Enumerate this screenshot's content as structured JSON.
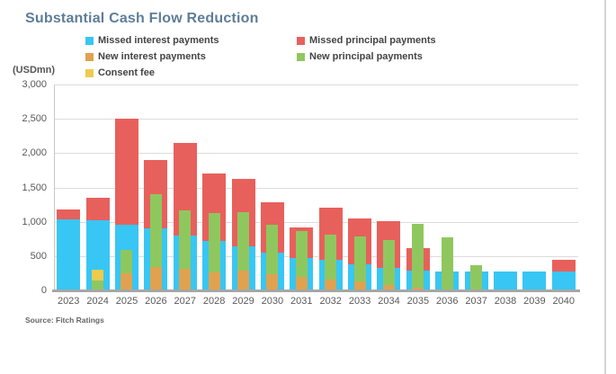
{
  "title": "Substantial Cash Flow Reduction",
  "y_axis_unit_label": "(USDmn)",
  "source": "Source: Fitch Ratings",
  "colors": {
    "missed_interest": "#38c6f4",
    "missed_principal": "#e8605c",
    "new_interest": "#e0a24f",
    "new_principal": "#8fc75f",
    "consent_fee": "#eccb4f",
    "title": "#5e7d99",
    "gridline": "#dcdcdc",
    "axis": "#a6a6a6"
  },
  "legend": [
    {
      "label": "Missed interest payments",
      "color": "#38c6f4"
    },
    {
      "label": "Missed principal payments",
      "color": "#e8605c"
    },
    {
      "label": "New interest payments",
      "color": "#e0a24f"
    },
    {
      "label": "New principal payments",
      "color": "#8fc75f"
    },
    {
      "label": "Consent fee",
      "color": "#eccb4f"
    }
  ],
  "chart_data": {
    "type": "bar",
    "stacked": true,
    "title": "Substantial Cash Flow Reduction",
    "ylabel": "(USDmn)",
    "xlabel": "",
    "ylim": [
      0,
      3000
    ],
    "y_ticks": [
      "3,000",
      "2,500",
      "2,000",
      "1,500",
      "1,000",
      "500",
      "0"
    ],
    "grid": true,
    "legend_position": "top",
    "categories": [
      "2023",
      "2024",
      "2025",
      "2026",
      "2027",
      "2028",
      "2029",
      "2030",
      "2031",
      "2032",
      "2033",
      "2034",
      "2035",
      "2036",
      "2037",
      "2038",
      "2039",
      "2040"
    ],
    "series": [
      {
        "name": "Missed interest payments",
        "group": "missed",
        "color": "#38c6f4",
        "values": [
          1030,
          1020,
          950,
          900,
          800,
          720,
          640,
          550,
          470,
          440,
          380,
          330,
          290,
          270,
          270,
          270,
          270,
          270
        ]
      },
      {
        "name": "Missed principal payments",
        "group": "missed",
        "color": "#e8605c",
        "values": [
          150,
          330,
          1550,
          1000,
          1350,
          980,
          990,
          740,
          450,
          760,
          670,
          680,
          330,
          0,
          0,
          0,
          0,
          170
        ]
      },
      {
        "name": "New interest payments",
        "group": "new",
        "color": "#e0a24f",
        "values": [
          0,
          0,
          250,
          340,
          310,
          260,
          290,
          240,
          190,
          160,
          130,
          80,
          40,
          0,
          0,
          0,
          0,
          0
        ]
      },
      {
        "name": "New principal payments",
        "group": "new",
        "color": "#8fc75f",
        "values": [
          0,
          150,
          340,
          1060,
          850,
          870,
          850,
          710,
          680,
          650,
          650,
          650,
          930,
          770,
          370,
          0,
          0,
          0
        ]
      },
      {
        "name": "Consent fee",
        "group": "new",
        "color": "#eccb4f",
        "values": [
          0,
          150,
          0,
          0,
          0,
          0,
          0,
          0,
          0,
          0,
          0,
          0,
          0,
          0,
          0,
          0,
          0,
          0
        ]
      }
    ]
  }
}
